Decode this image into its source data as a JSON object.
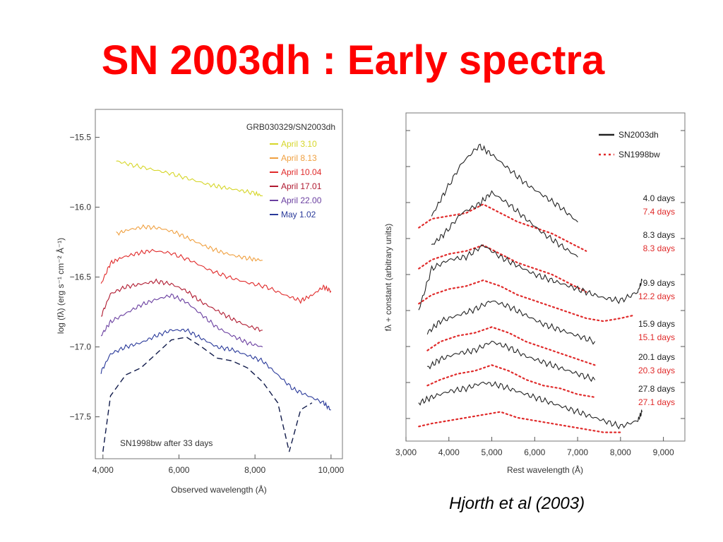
{
  "slide": {
    "title": "SN 2003dh : Early spectra",
    "credit": "Hjorth et al (2003)"
  },
  "colors": {
    "title": "#ff0000",
    "april_3_10": "#d6d628",
    "april_8_13": "#f0a040",
    "april_10_04": "#e02a2a",
    "april_17_01": "#b01a30",
    "april_22_00": "#6a3fa0",
    "may_1_02": "#2a3a9a",
    "sn1998bw_left": "#101a4a",
    "sn2003dh": "#222222",
    "sn1998bw_right": "#e02a2a"
  },
  "chart_data": [
    {
      "type": "line",
      "title": "GRB030329/SN2003dh",
      "xlabel": "Observed wavelength (Å)",
      "ylabel": "log (fλ) (erg s⁻¹ cm⁻² Å⁻¹)",
      "xlim": [
        3800,
        10300
      ],
      "ylim": [
        -17.8,
        -15.3
      ],
      "xticks": [
        "4,000",
        "6,000",
        "8,000",
        "10,000"
      ],
      "yticks": [
        "−15.5",
        "−16.0",
        "−16.5",
        "−17.0",
        "−17.5"
      ],
      "ytick_values": [
        -15.5,
        -16.0,
        -16.5,
        -17.0,
        -17.5
      ],
      "xtick_values": [
        4000,
        6000,
        8000,
        10000
      ],
      "legend_position": "top-right",
      "annotation": "SN1998bw after 33 days",
      "series": [
        {
          "name": "April 3.10",
          "style": "solid",
          "x": [
            4350,
            4800,
            5300,
            5800,
            6300,
            6800,
            7200,
            7600,
            8000,
            8200
          ],
          "y": [
            -15.67,
            -15.7,
            -15.73,
            -15.76,
            -15.8,
            -15.84,
            -15.86,
            -15.88,
            -15.9,
            -15.92
          ]
        },
        {
          "name": "April 8.13",
          "style": "solid",
          "x": [
            4350,
            4700,
            5100,
            5500,
            5900,
            6300,
            6700,
            7100,
            7500,
            7900,
            8200
          ],
          "y": [
            -16.19,
            -16.16,
            -16.14,
            -16.15,
            -16.18,
            -16.23,
            -16.28,
            -16.32,
            -16.35,
            -16.37,
            -16.38
          ]
        },
        {
          "name": "April 10.04",
          "style": "solid",
          "x": [
            3950,
            4200,
            4500,
            4900,
            5300,
            5800,
            6300,
            6800,
            7300,
            7800,
            8300,
            8800,
            9200,
            9500,
            9800,
            10000
          ],
          "y": [
            -16.55,
            -16.4,
            -16.36,
            -16.33,
            -16.31,
            -16.33,
            -16.38,
            -16.45,
            -16.5,
            -16.54,
            -16.57,
            -16.63,
            -16.67,
            -16.63,
            -16.57,
            -16.6
          ]
        },
        {
          "name": "April 17.01",
          "style": "solid",
          "x": [
            3950,
            4200,
            4600,
            5000,
            5400,
            5800,
            6200,
            6600,
            7000,
            7400,
            7800,
            8200
          ],
          "y": [
            -16.78,
            -16.62,
            -16.57,
            -16.55,
            -16.53,
            -16.55,
            -16.6,
            -16.68,
            -16.74,
            -16.8,
            -16.85,
            -16.88
          ]
        },
        {
          "name": "April 22.00",
          "style": "solid",
          "x": [
            3950,
            4200,
            4600,
            5000,
            5400,
            5800,
            6200,
            6600,
            7000,
            7400,
            7800,
            8200
          ],
          "y": [
            -16.92,
            -16.82,
            -16.76,
            -16.7,
            -16.66,
            -16.63,
            -16.68,
            -16.77,
            -16.86,
            -16.92,
            -16.97,
            -17.0
          ]
        },
        {
          "name": "May 1.02",
          "style": "solid",
          "x": [
            3950,
            4200,
            4600,
            5000,
            5400,
            5800,
            6200,
            6600,
            7000,
            7400,
            7800,
            8200,
            8600,
            9000,
            9400,
            9800,
            10000
          ],
          "y": [
            -17.18,
            -17.05,
            -17.0,
            -16.97,
            -16.92,
            -16.88,
            -16.88,
            -16.94,
            -17.0,
            -17.02,
            -17.06,
            -17.1,
            -17.2,
            -17.3,
            -17.35,
            -17.4,
            -17.45
          ]
        },
        {
          "name": "SN1998bw after 33 days",
          "style": "dashed",
          "x": [
            4000,
            4200,
            4600,
            5000,
            5400,
            5800,
            6200,
            6600,
            7000,
            7400,
            7800,
            8200,
            8600,
            8900,
            9200,
            9500
          ],
          "y": [
            -17.75,
            -17.35,
            -17.2,
            -17.15,
            -17.05,
            -16.95,
            -16.93,
            -17.0,
            -17.08,
            -17.1,
            -17.15,
            -17.25,
            -17.4,
            -17.75,
            -17.45,
            -17.4
          ]
        }
      ]
    },
    {
      "type": "line",
      "title": "",
      "xlabel": "Rest wavelength (Å)",
      "ylabel": "fλ + constant (arbitrary units)",
      "xlim": [
        3000,
        9500
      ],
      "xticks": [
        "3,000",
        "4,000",
        "5,000",
        "6,000",
        "7,000",
        "8,000",
        "9,000"
      ],
      "xtick_values": [
        3000,
        4000,
        5000,
        6000,
        7000,
        8000,
        9000
      ],
      "legend_position": "top-right",
      "legend": [
        "SN2003dh",
        "SN1998bw"
      ],
      "epochs": [
        {
          "sn2003dh": "4.0 days",
          "sn1998bw": "7.4 days"
        },
        {
          "sn2003dh": "8.3 days",
          "sn1998bw": "8.3 days"
        },
        {
          "sn2003dh": "9.9 days",
          "sn1998bw": "12.2 days"
        },
        {
          "sn2003dh": "15.9 days",
          "sn1998bw": "15.1 days"
        },
        {
          "sn2003dh": "20.1 days",
          "sn1998bw": "20.3 days"
        },
        {
          "sn2003dh": "27.8 days",
          "sn1998bw": "27.1 days"
        }
      ],
      "series": [
        {
          "name": "SN2003dh",
          "epoch": "4.0 days",
          "style": "solid",
          "x": [
            3600,
            3900,
            4300,
            4700,
            5000,
            5400,
            5800,
            6200,
            6600,
            7000
          ],
          "y": [
            0.62,
            0.7,
            0.8,
            0.86,
            0.83,
            0.78,
            0.73,
            0.69,
            0.65,
            0.6
          ]
        },
        {
          "name": "SN1998bw",
          "epoch": "7.4 days",
          "style": "dotted",
          "x": [
            3300,
            3600,
            4000,
            4400,
            4800,
            5200,
            5600,
            6000,
            6400,
            6800,
            7200
          ],
          "y": [
            0.58,
            0.61,
            0.62,
            0.63,
            0.66,
            0.63,
            0.6,
            0.58,
            0.56,
            0.53,
            0.5
          ]
        },
        {
          "name": "SN2003dh",
          "epoch": "8.3 days",
          "style": "solid",
          "x": [
            3600,
            3900,
            4300,
            4700,
            5000,
            5400,
            5800,
            6200,
            6600,
            7000
          ],
          "y": [
            0.52,
            0.56,
            0.63,
            0.66,
            0.7,
            0.66,
            0.61,
            0.56,
            0.52,
            0.48
          ]
        },
        {
          "name": "SN1998bw",
          "epoch": "8.3 days",
          "style": "dotted",
          "x": [
            3300,
            3600,
            4000,
            4400,
            4800,
            5200,
            5600,
            6000,
            6400,
            6800,
            7200
          ],
          "y": [
            0.44,
            0.47,
            0.49,
            0.5,
            0.52,
            0.49,
            0.46,
            0.44,
            0.42,
            0.39,
            0.36
          ]
        },
        {
          "name": "SN2003dh",
          "epoch": "9.9 days",
          "style": "solid",
          "x": [
            3300,
            3600,
            4000,
            4400,
            4800,
            5200,
            5600,
            6000,
            6400,
            6800,
            7200,
            7600,
            8000,
            8400,
            8500
          ],
          "y": [
            0.3,
            0.44,
            0.47,
            0.48,
            0.52,
            0.48,
            0.45,
            0.42,
            0.4,
            0.38,
            0.36,
            0.34,
            0.33,
            0.36,
            0.4
          ]
        },
        {
          "name": "SN1998bw",
          "epoch": "12.2 days",
          "style": "dotted",
          "x": [
            3300,
            3600,
            4000,
            4400,
            4800,
            5200,
            5600,
            6000,
            6400,
            6800,
            7200,
            7600,
            8000,
            8300
          ],
          "y": [
            0.32,
            0.35,
            0.37,
            0.38,
            0.4,
            0.38,
            0.35,
            0.33,
            0.31,
            0.29,
            0.27,
            0.26,
            0.27,
            0.28
          ]
        },
        {
          "name": "SN2003dh",
          "epoch": "15.9 days",
          "style": "solid",
          "x": [
            3500,
            3800,
            4200,
            4600,
            5000,
            5400,
            5800,
            6200,
            6600,
            7000,
            7400
          ],
          "y": [
            0.22,
            0.26,
            0.28,
            0.3,
            0.33,
            0.31,
            0.28,
            0.25,
            0.23,
            0.21,
            0.19
          ]
        },
        {
          "name": "SN1998bw",
          "epoch": "15.1 days",
          "style": "dotted",
          "x": [
            3500,
            3800,
            4200,
            4600,
            5000,
            5400,
            5800,
            6200,
            6600,
            7000,
            7400
          ],
          "y": [
            0.16,
            0.19,
            0.21,
            0.22,
            0.24,
            0.22,
            0.19,
            0.17,
            0.15,
            0.13,
            0.11
          ]
        },
        {
          "name": "SN2003dh",
          "epoch": "20.1 days",
          "style": "solid",
          "x": [
            3500,
            3800,
            4200,
            4600,
            5000,
            5400,
            5800,
            6200,
            6600,
            7000,
            7400
          ],
          "y": [
            0.1,
            0.13,
            0.15,
            0.16,
            0.19,
            0.17,
            0.14,
            0.12,
            0.1,
            0.08,
            0.06
          ]
        },
        {
          "name": "SN1998bw",
          "epoch": "20.3 days",
          "style": "dotted",
          "x": [
            3500,
            3800,
            4200,
            4600,
            5000,
            5400,
            5800,
            6200,
            6600,
            7000,
            7400
          ],
          "y": [
            0.04,
            0.06,
            0.08,
            0.09,
            0.11,
            0.09,
            0.06,
            0.04,
            0.03,
            0.01,
            0.0
          ]
        },
        {
          "name": "SN2003dh",
          "epoch": "27.8 days",
          "style": "solid",
          "x": [
            3300,
            3600,
            4000,
            4400,
            4800,
            5200,
            5600,
            6000,
            6400,
            6800,
            7200,
            7600,
            8000,
            8400,
            8500
          ],
          "y": [
            -0.02,
            0.0,
            0.02,
            0.03,
            0.05,
            0.04,
            0.02,
            0.0,
            -0.02,
            -0.04,
            -0.06,
            -0.08,
            -0.1,
            -0.08,
            -0.05
          ]
        },
        {
          "name": "SN1998bw",
          "epoch": "27.1 days",
          "style": "dotted",
          "x": [
            3300,
            3600,
            4000,
            4400,
            4800,
            5200,
            5600,
            6000,
            6400,
            6800,
            7200,
            7600,
            8000
          ],
          "y": [
            -0.1,
            -0.09,
            -0.08,
            -0.07,
            -0.06,
            -0.05,
            -0.07,
            -0.08,
            -0.09,
            -0.1,
            -0.11,
            -0.12,
            -0.12
          ]
        }
      ]
    }
  ]
}
